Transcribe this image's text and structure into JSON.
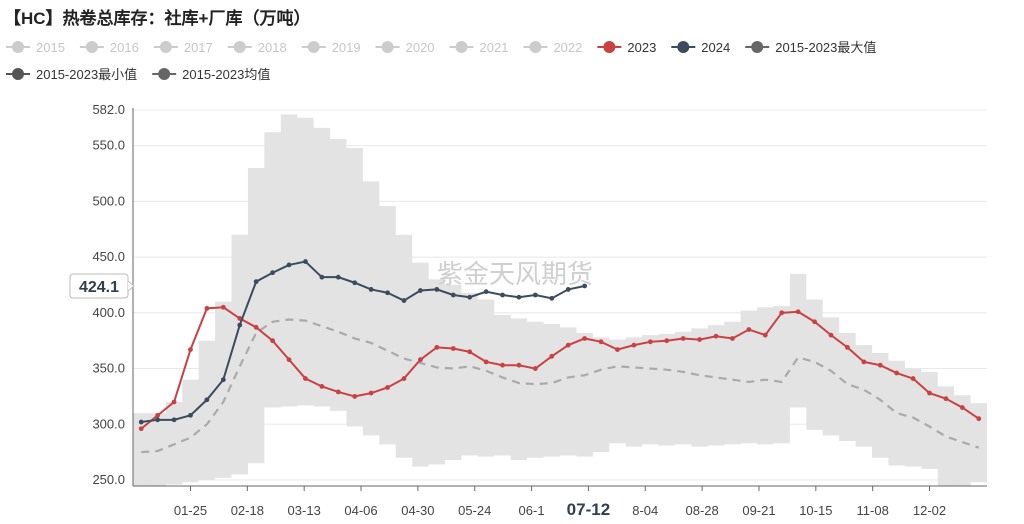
{
  "title": "【HC】热卷总库存：社库+厂库（万吨）",
  "watermark": "紫金天风期货",
  "colors": {
    "inactive": "#cccccc",
    "s2023": "#c94142",
    "s2024": "#3b4c5e",
    "band": "#e3e3e3",
    "avg": "#aaaaaa",
    "legend_max": "#666666",
    "legend_min": "#555555",
    "legend_avg": "#666666"
  },
  "legend": {
    "row1": [
      {
        "label": "2015",
        "active": false
      },
      {
        "label": "2016",
        "active": false
      },
      {
        "label": "2017",
        "active": false
      },
      {
        "label": "2018",
        "active": false
      },
      {
        "label": "2019",
        "active": false
      },
      {
        "label": "2020",
        "active": false
      },
      {
        "label": "2021",
        "active": false
      },
      {
        "label": "2022",
        "active": false
      },
      {
        "label": "2023",
        "active": true,
        "color": "#c94142"
      },
      {
        "label": "2024",
        "active": true,
        "color": "#3b4c5e"
      },
      {
        "label": "2015-2023最大值",
        "active": true,
        "color": "#666666"
      }
    ],
    "row2": [
      {
        "label": "2015-2023最小值",
        "active": true,
        "color": "#555555"
      },
      {
        "label": "2015-2023均值",
        "active": true,
        "color": "#666666"
      }
    ]
  },
  "chart_data": {
    "type": "line",
    "ylim": [
      250,
      582
    ],
    "y_ticks": [
      "250.0",
      "300.0",
      "350.0",
      "400.0",
      "450.0",
      "500.0",
      "550.0",
      "582.0"
    ],
    "x_tick_labels": [
      "01-25",
      "02-18",
      "03-13",
      "04-06",
      "04-30",
      "05-24",
      "06-1",
      "07-12",
      "8-04",
      "08-28",
      "09-21",
      "10-15",
      "11-08",
      "12-02"
    ],
    "x_highlight": "07-12",
    "cursor_value": "424.1",
    "weeks": 52,
    "series": [
      {
        "name": "2023",
        "color": "#c94142",
        "values": [
          296,
          308,
          320,
          367,
          404,
          405,
          395,
          387,
          375,
          358,
          341,
          334,
          329,
          325,
          328,
          333,
          341,
          358,
          369,
          368,
          365,
          356,
          353,
          353,
          350,
          361,
          371,
          377,
          374,
          367,
          371,
          374,
          375,
          377,
          376,
          379,
          377,
          385,
          380,
          400,
          401,
          392,
          380,
          369,
          356,
          353,
          346,
          341,
          328,
          323,
          315,
          305
        ]
      },
      {
        "name": "2024",
        "color": "#3b4c5e",
        "values": [
          302,
          304,
          304,
          308,
          322,
          340,
          389,
          428,
          436,
          443,
          446,
          432,
          432,
          427,
          421,
          418,
          411,
          420,
          421,
          416,
          414,
          419,
          416,
          414,
          416,
          413,
          421,
          424.1
        ]
      },
      {
        "name": "2015-2023最大值",
        "values": [
          310,
          310,
          320,
          340,
          375,
          410,
          470,
          530,
          562,
          578,
          575,
          566,
          556,
          548,
          518,
          496,
          470,
          445,
          430,
          425,
          418,
          412,
          398,
          395,
          392,
          390,
          387,
          382,
          378,
          376,
          378,
          380,
          381,
          383,
          386,
          389,
          392,
          402,
          405,
          406,
          435,
          412,
          396,
          382,
          371,
          364,
          357,
          350,
          347,
          334,
          326,
          319
        ]
      },
      {
        "name": "2015-2023最小值",
        "values": [
          244,
          245,
          246,
          248,
          250,
          252,
          255,
          265,
          315,
          316,
          317,
          316,
          312,
          298,
          290,
          282,
          270,
          262,
          264,
          268,
          272,
          271,
          272,
          268,
          270,
          271,
          272,
          271,
          275,
          283,
          280,
          282,
          281,
          282,
          280,
          281,
          282,
          283,
          282,
          283,
          315,
          295,
          290,
          285,
          280,
          270,
          263,
          262,
          260,
          245,
          244,
          248
        ]
      },
      {
        "name": "2015-2023均值",
        "values": [
          275,
          276,
          282,
          288,
          300,
          320,
          352,
          382,
          392,
          394,
          393,
          388,
          383,
          377,
          373,
          366,
          359,
          355,
          351,
          350,
          352,
          348,
          342,
          337,
          336,
          337,
          342,
          344,
          349,
          352,
          351,
          350,
          349,
          347,
          344,
          342,
          340,
          338,
          340,
          338,
          360,
          356,
          348,
          336,
          331,
          322,
          310,
          306,
          298,
          289,
          284,
          279
        ]
      }
    ]
  }
}
